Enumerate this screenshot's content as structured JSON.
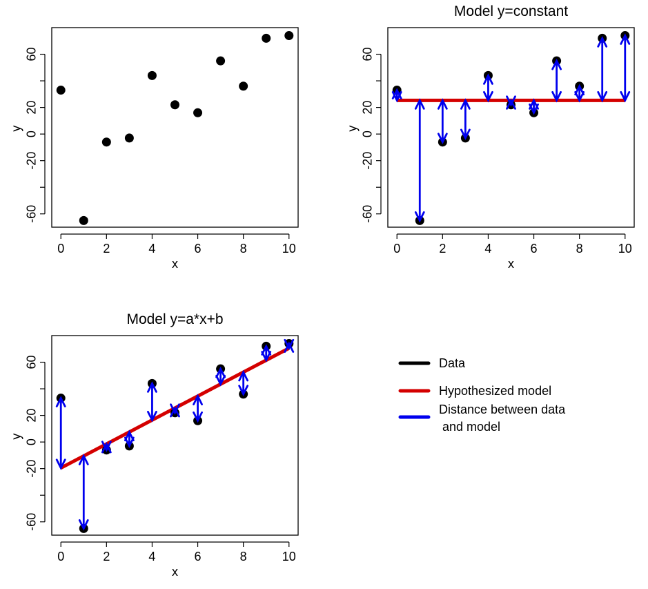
{
  "figure": {
    "chart_data": [
      {
        "type": "scatter",
        "title": "",
        "xlabel": "x",
        "ylabel": "y",
        "xlim": [
          -0.4,
          10.4
        ],
        "ylim": [
          -70,
          80
        ],
        "x_ticks": [
          "0",
          "2",
          "4",
          "6",
          "8",
          "10"
        ],
        "y_ticks": [
          "-60",
          "",
          "-20",
          "0",
          "20",
          "",
          "60"
        ],
        "points": [
          {
            "x": 0,
            "y": 33
          },
          {
            "x": 1,
            "y": -65
          },
          {
            "x": 2,
            "y": -6
          },
          {
            "x": 3,
            "y": -3
          },
          {
            "x": 4,
            "y": 44
          },
          {
            "x": 5,
            "y": 22
          },
          {
            "x": 6,
            "y": 16
          },
          {
            "x": 7,
            "y": 55
          },
          {
            "x": 8,
            "y": 36
          },
          {
            "x": 9,
            "y": 72
          },
          {
            "x": 10,
            "y": 74
          }
        ]
      },
      {
        "type": "scatter",
        "title": "Model y=constant",
        "xlabel": "x",
        "ylabel": "y",
        "xlim": [
          -0.4,
          10.4
        ],
        "ylim": [
          -70,
          80
        ],
        "x_ticks": [
          "0",
          "2",
          "4",
          "6",
          "8",
          "10"
        ],
        "y_ticks": [
          "-60",
          "",
          "-20",
          "0",
          "20",
          "",
          "60"
        ],
        "model": {
          "kind": "constant",
          "value": 25.3
        },
        "points": [
          {
            "x": 0,
            "y": 33
          },
          {
            "x": 1,
            "y": -65
          },
          {
            "x": 2,
            "y": -6
          },
          {
            "x": 3,
            "y": -3
          },
          {
            "x": 4,
            "y": 44
          },
          {
            "x": 5,
            "y": 22
          },
          {
            "x": 6,
            "y": 16
          },
          {
            "x": 7,
            "y": 55
          },
          {
            "x": 8,
            "y": 36
          },
          {
            "x": 9,
            "y": 72
          },
          {
            "x": 10,
            "y": 74
          }
        ]
      },
      {
        "type": "scatter",
        "title": "Model y=a*x+b",
        "xlabel": "x",
        "ylabel": "y",
        "xlim": [
          -0.4,
          10.4
        ],
        "ylim": [
          -70,
          80
        ],
        "x_ticks": [
          "0",
          "2",
          "4",
          "6",
          "8",
          "10"
        ],
        "y_ticks": [
          "-60",
          "",
          "-20",
          "0",
          "20",
          "",
          "60"
        ],
        "model": {
          "kind": "linear",
          "a": 9.0,
          "b": -19.5
        },
        "points": [
          {
            "x": 0,
            "y": 33
          },
          {
            "x": 1,
            "y": -65
          },
          {
            "x": 2,
            "y": -6
          },
          {
            "x": 3,
            "y": -3
          },
          {
            "x": 4,
            "y": 44
          },
          {
            "x": 5,
            "y": 22
          },
          {
            "x": 6,
            "y": 16
          },
          {
            "x": 7,
            "y": 55
          },
          {
            "x": 8,
            "y": 36
          },
          {
            "x": 9,
            "y": 72
          },
          {
            "x": 10,
            "y": 74
          }
        ]
      }
    ],
    "legend": {
      "items": [
        {
          "label": "Data",
          "color": "#000000"
        },
        {
          "label": "Hypothesized model",
          "color": "#d40000"
        },
        {
          "label": "Distance between data",
          "label2": " and model",
          "color": "#0000ee"
        }
      ]
    }
  }
}
